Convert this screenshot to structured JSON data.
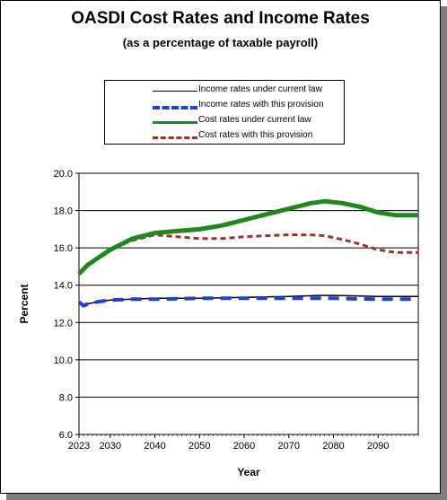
{
  "title": "OASDI Cost Rates and Income Rates",
  "subtitle": "(as a percentage of taxable payroll)",
  "chart_data": {
    "type": "line",
    "xlabel": "Year",
    "ylabel": "Percent",
    "xlim": [
      2023,
      2099
    ],
    "ylim": [
      6.0,
      20.0
    ],
    "y_ticks": [
      "6.0",
      "8.0",
      "10.0",
      "12.0",
      "14.0",
      "16.0",
      "18.0",
      "20.0"
    ],
    "y_tick_values": [
      6,
      8,
      10,
      12,
      14,
      16,
      18,
      20
    ],
    "x_ticks": [
      "2023",
      "2030",
      "2040",
      "2050",
      "2060",
      "2070",
      "2080",
      "2090"
    ],
    "x_tick_values": [
      2023,
      2030,
      2040,
      2050,
      2060,
      2070,
      2080,
      2090
    ],
    "grid": "horizontal",
    "legend_position": "top",
    "series": [
      {
        "name": "Income rates under current law",
        "color": "#000000",
        "style": "solid",
        "x": [
          2023,
          2024,
          2025,
          2027,
          2030,
          2035,
          2040,
          2050,
          2060,
          2070,
          2077,
          2080,
          2090,
          2099
        ],
        "y": [
          13.1,
          12.9,
          13.0,
          13.1,
          13.2,
          13.25,
          13.3,
          13.3,
          13.35,
          13.4,
          13.45,
          13.45,
          13.4,
          13.4
        ]
      },
      {
        "name": "Income rates with this provision",
        "color": "#1f3fd6",
        "style": "dashed",
        "x": [
          2023,
          2024,
          2025,
          2027,
          2030,
          2035,
          2040,
          2050,
          2060,
          2070,
          2080,
          2090,
          2099
        ],
        "y": [
          13.1,
          12.9,
          13.0,
          13.1,
          13.2,
          13.25,
          13.25,
          13.3,
          13.3,
          13.3,
          13.3,
          13.25,
          13.25
        ]
      },
      {
        "name": "Cost rates under current law",
        "color": "#1e8a1e",
        "style": "solid",
        "x": [
          2023,
          2025,
          2030,
          2035,
          2040,
          2045,
          2050,
          2055,
          2060,
          2065,
          2070,
          2075,
          2078,
          2082,
          2086,
          2090,
          2094,
          2099
        ],
        "y": [
          14.6,
          15.1,
          15.9,
          16.5,
          16.8,
          16.9,
          17.0,
          17.2,
          17.5,
          17.8,
          18.1,
          18.4,
          18.5,
          18.4,
          18.2,
          17.9,
          17.75,
          17.75
        ]
      },
      {
        "name": "Cost rates with this provision",
        "color": "#a03030",
        "style": "dashed",
        "x": [
          2023,
          2025,
          2030,
          2035,
          2040,
          2045,
          2050,
          2055,
          2060,
          2065,
          2070,
          2075,
          2078,
          2082,
          2086,
          2090,
          2094,
          2099
        ],
        "y": [
          14.6,
          15.1,
          15.9,
          16.4,
          16.7,
          16.6,
          16.5,
          16.5,
          16.6,
          16.65,
          16.7,
          16.7,
          16.65,
          16.45,
          16.2,
          15.9,
          15.75,
          15.75
        ]
      }
    ]
  }
}
